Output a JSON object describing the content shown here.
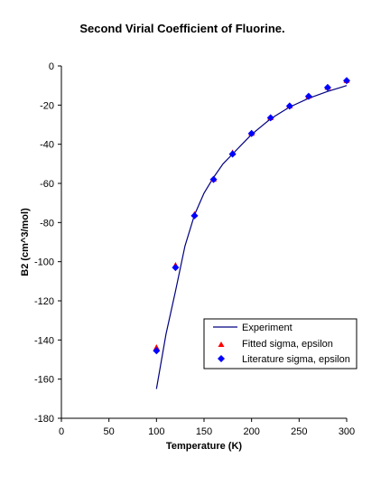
{
  "chart_data": {
    "type": "line",
    "title": "Second Virial Coefficient of Fluorine.",
    "xlabel": "Temperature (K)",
    "ylabel": "B2 (cm^3/mol)",
    "xlim": [
      0,
      300
    ],
    "ylim": [
      -180,
      0
    ],
    "xticks": [
      "0",
      "50",
      "100",
      "150",
      "200",
      "250",
      "300"
    ],
    "yticks": [
      "0",
      "-20",
      "-40",
      "-60",
      "-80",
      "-100",
      "-120",
      "-140",
      "-160",
      "-180"
    ],
    "grid": false,
    "legend_position": "lower-right",
    "series": [
      {
        "name": "Experiment",
        "kind": "line",
        "color": "#000080",
        "x": [
          100,
          110,
          120,
          130,
          140,
          150,
          160,
          170,
          180,
          190,
          200,
          220,
          240,
          260,
          280,
          300
        ],
        "y": [
          -165,
          -137,
          -115,
          -92,
          -76,
          -65,
          -57,
          -50,
          -45,
          -40,
          -35,
          -27,
          -21,
          -16.5,
          -13,
          -10
        ]
      },
      {
        "name": "Fitted sigma, epsilon",
        "kind": "marker",
        "marker": "triangle",
        "color": "#ff0000",
        "x": [
          100,
          120,
          140,
          160,
          180,
          200,
          220,
          240,
          260,
          280,
          300
        ],
        "y": [
          -144,
          -102,
          -76,
          -58,
          -44.5,
          -34.5,
          -26.5,
          -20.5,
          -15.5,
          -11,
          -7.5
        ]
      },
      {
        "name": "Literature sigma, epsilon",
        "kind": "marker",
        "marker": "diamond",
        "color": "#0000ff",
        "x": [
          100,
          120,
          140,
          160,
          180,
          200,
          220,
          240,
          260,
          280,
          300
        ],
        "y": [
          -145.5,
          -103,
          -76.5,
          -58,
          -45,
          -34.5,
          -26.5,
          -20.5,
          -15.5,
          -11,
          -7.5
        ]
      }
    ]
  }
}
